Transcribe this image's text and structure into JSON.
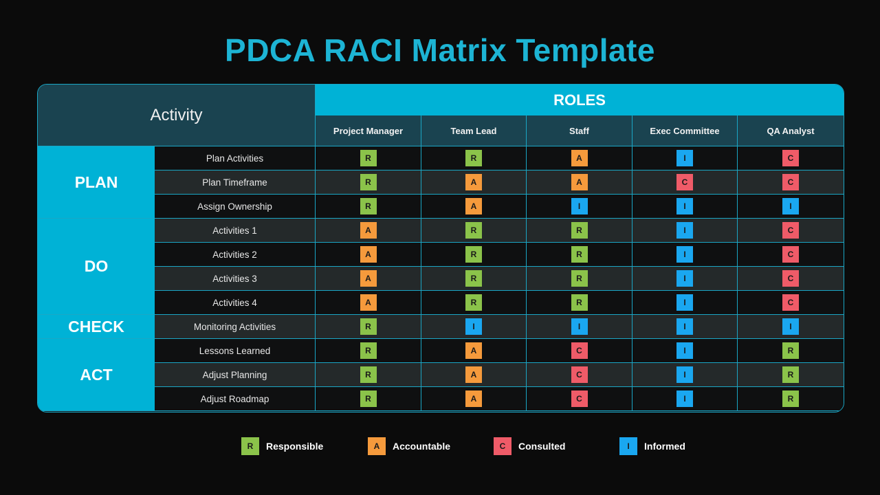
{
  "title": "PDCA RACI Matrix Template",
  "header": {
    "activity_label": "Activity",
    "roles_label": "ROLES",
    "roles": [
      "Project Manager",
      "Team Lead",
      "Staff",
      "Exec Committee",
      "QA Analyst"
    ]
  },
  "colors": {
    "R": "#8bc34a",
    "A": "#f59a3c",
    "C": "#ef5b68",
    "I": "#1aa7f0",
    "accent": "#00b2d6",
    "title": "#1db4d4"
  },
  "phases": [
    {
      "name": "PLAN",
      "rows": [
        {
          "activity": "Plan Activities",
          "values": [
            "R",
            "R",
            "A",
            "I",
            "C"
          ]
        },
        {
          "activity": "Plan Timeframe",
          "values": [
            "R",
            "A",
            "A",
            "C",
            "C"
          ]
        },
        {
          "activity": "Assign Ownership",
          "values": [
            "R",
            "A",
            "I",
            "I",
            "I"
          ]
        }
      ]
    },
    {
      "name": "DO",
      "rows": [
        {
          "activity": "Activities 1",
          "values": [
            "A",
            "R",
            "R",
            "I",
            "C"
          ]
        },
        {
          "activity": "Activities 2",
          "values": [
            "A",
            "R",
            "R",
            "I",
            "C"
          ]
        },
        {
          "activity": "Activities 3",
          "values": [
            "A",
            "R",
            "R",
            "I",
            "C"
          ]
        },
        {
          "activity": "Activities 4",
          "values": [
            "A",
            "R",
            "R",
            "I",
            "C"
          ]
        }
      ]
    },
    {
      "name": "CHECK",
      "rows": [
        {
          "activity": "Monitoring Activities",
          "values": [
            "R",
            "I",
            "I",
            "I",
            "I"
          ]
        }
      ]
    },
    {
      "name": "ACT",
      "rows": [
        {
          "activity": "Lessons Learned",
          "values": [
            "R",
            "A",
            "C",
            "I",
            "R"
          ]
        },
        {
          "activity": "Adjust Planning",
          "values": [
            "R",
            "A",
            "C",
            "I",
            "R"
          ]
        },
        {
          "activity": "Adjust Roadmap",
          "values": [
            "R",
            "A",
            "C",
            "I",
            "R"
          ]
        }
      ]
    }
  ],
  "legend": [
    {
      "key": "R",
      "label": "Responsible"
    },
    {
      "key": "A",
      "label": "Accountable"
    },
    {
      "key": "C",
      "label": "Consulted"
    },
    {
      "key": "I",
      "label": "Informed"
    }
  ]
}
